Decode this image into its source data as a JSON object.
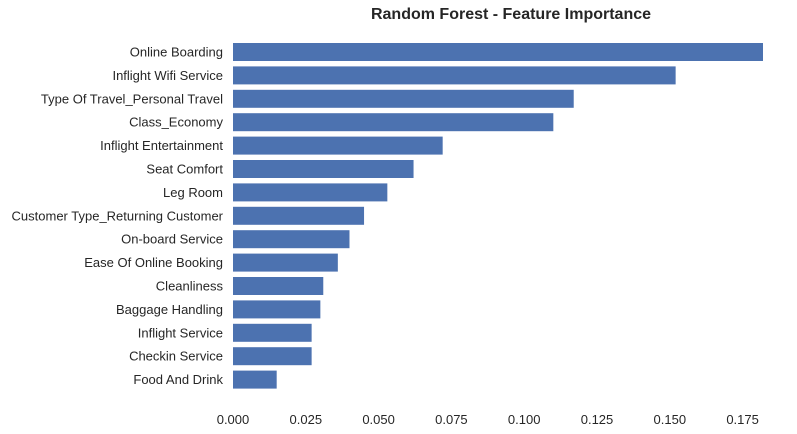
{
  "chart_data": {
    "type": "bar",
    "orientation": "horizontal",
    "title": "Random Forest - Feature Importance",
    "xlabel": "",
    "ylabel": "",
    "grid": false,
    "bar_color": "#4c72b0",
    "xlim": [
      0,
      0.182
    ],
    "xticks": [
      0.0,
      0.025,
      0.05,
      0.075,
      0.1,
      0.125,
      0.15,
      0.175
    ],
    "xtick_labels": [
      "0.000",
      "0.025",
      "0.050",
      "0.075",
      "0.100",
      "0.125",
      "0.150",
      "0.175"
    ],
    "categories": [
      "Online Boarding",
      "Inflight Wifi Service",
      "Type Of Travel_Personal Travel",
      "Class_Economy",
      "Inflight Entertainment",
      "Seat Comfort",
      "Leg Room",
      "Customer Type_Returning Customer",
      "On-board Service",
      "Ease Of Online Booking",
      "Cleanliness",
      "Baggage Handling",
      "Inflight Service",
      "Checkin Service",
      "Food And Drink"
    ],
    "values": [
      0.182,
      0.152,
      0.117,
      0.11,
      0.072,
      0.062,
      0.053,
      0.045,
      0.04,
      0.036,
      0.031,
      0.03,
      0.027,
      0.027,
      0.015
    ]
  }
}
